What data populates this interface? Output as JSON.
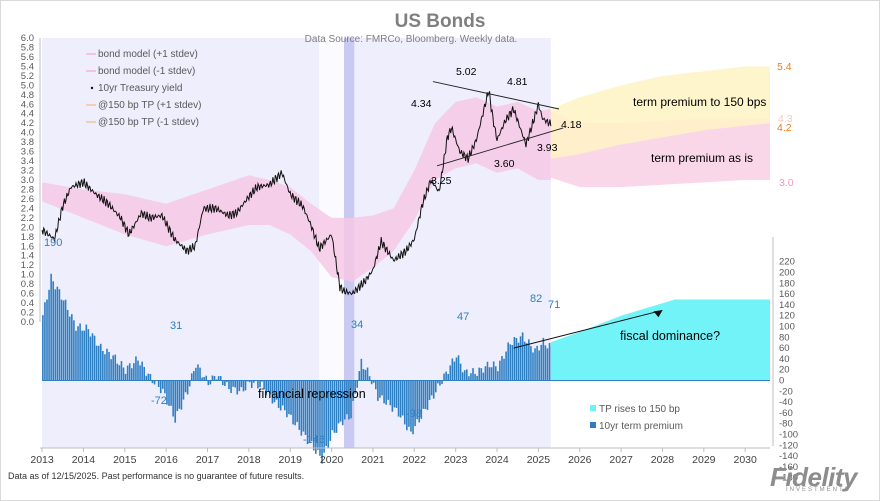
{
  "chart_data": {
    "type": "line",
    "title": "US Bonds",
    "subtitle": "Data Source: FMRCo, Bloomberg.  Weekly data.",
    "x_ticks": [
      "2013",
      "2014",
      "2015",
      "2016",
      "2017",
      "2018",
      "2019",
      "2020",
      "2021",
      "2022",
      "2023",
      "2024",
      "2025",
      "2026",
      "2027",
      "2028",
      "2029",
      "2030"
    ],
    "x_range": [
      2012.95,
      2030.6
    ],
    "left_axis": {
      "range": [
        0.0,
        6.0
      ],
      "ticks": [
        "6.0",
        "5.8",
        "5.6",
        "5.4",
        "5.2",
        "5.0",
        "4.8",
        "4.6",
        "4.4",
        "4.2",
        "4.0",
        "3.8",
        "3.6",
        "3.4",
        "3.2",
        "3.0",
        "2.8",
        "2.6",
        "2.4",
        "2.2",
        "2.0",
        "1.8",
        "1.6",
        "1.4",
        "1.2",
        "1.0",
        "0.8",
        "0.6",
        "0.4",
        "0.2",
        "0.0"
      ]
    },
    "right_axis": {
      "range": [
        -180,
        220
      ],
      "ticks": [
        "220",
        "200",
        "180",
        "160",
        "140",
        "120",
        "100",
        "80",
        "60",
        "40",
        "20",
        "0",
        "-20",
        "-40",
        "-60",
        "-80",
        "-100",
        "-120",
        "-140",
        "-160",
        "-180"
      ]
    },
    "legend_top": [
      {
        "label": "bond model (+1 stdev)",
        "color": "#f4b6d9"
      },
      {
        "label": "bond model (-1 stdev)",
        "color": "#f4b6d9"
      },
      {
        "label": "10yr Treasury yield",
        "color": "#111111"
      },
      {
        "label": "@150 bp TP (+1 stdev)",
        "color": "#f7c49a"
      },
      {
        "label": "@150 bp TP (-1 stdev)",
        "color": "#e8c59a"
      }
    ],
    "legend_bottom": [
      {
        "label": "TP rises to 150 bp",
        "color": "#6ef2f7"
      },
      {
        "label": "10yr term premium",
        "color": "#2d7cc1"
      }
    ],
    "series_yield": {
      "name": "10yr Treasury yield",
      "x": [
        2013.0,
        2013.3,
        2013.5,
        2013.7,
        2014.0,
        2014.3,
        2014.6,
        2014.9,
        2015.1,
        2015.4,
        2015.6,
        2015.9,
        2016.2,
        2016.5,
        2016.7,
        2016.9,
        2017.2,
        2017.5,
        2017.7,
        2018.0,
        2018.2,
        2018.5,
        2018.8,
        2019.0,
        2019.3,
        2019.5,
        2019.7,
        2020.0,
        2020.2,
        2020.3,
        2020.5,
        2020.8,
        2021.0,
        2021.2,
        2021.5,
        2021.8,
        2022.0,
        2022.2,
        2022.4,
        2022.6,
        2022.8,
        2022.9,
        2023.1,
        2023.3,
        2023.5,
        2023.8,
        2023.9,
        2024.0,
        2024.2,
        2024.4,
        2024.7,
        2024.9,
        2025.0,
        2025.1,
        2025.3
      ],
      "y": [
        1.95,
        1.75,
        2.45,
        2.85,
        2.95,
        2.7,
        2.5,
        2.2,
        1.85,
        2.3,
        2.2,
        2.25,
        1.75,
        1.5,
        1.6,
        2.4,
        2.4,
        2.25,
        2.3,
        2.65,
        2.85,
        2.9,
        3.15,
        2.7,
        2.45,
        2.05,
        1.55,
        1.85,
        0.75,
        0.65,
        0.6,
        0.85,
        1.1,
        1.7,
        1.3,
        1.5,
        1.75,
        2.5,
        3.0,
        2.75,
        3.9,
        4.1,
        3.6,
        3.45,
        3.85,
        4.9,
        4.3,
        3.85,
        4.25,
        4.5,
        3.75,
        4.3,
        4.6,
        4.3,
        4.18
      ]
    },
    "band_hist_upper": {
      "x": [
        2013.0,
        2014.0,
        2015.0,
        2016.0,
        2017.0,
        2018.0,
        2018.5,
        2019.0,
        2019.5,
        2020.0,
        2020.5,
        2021.0,
        2021.5,
        2022.0,
        2022.5,
        2023.0,
        2023.5,
        2024.0,
        2024.5,
        2025.0,
        2025.3
      ],
      "y": [
        2.95,
        2.8,
        2.7,
        2.5,
        2.8,
        3.1,
        3.0,
        2.85,
        2.5,
        2.2,
        2.2,
        2.25,
        2.4,
        3.2,
        4.2,
        4.65,
        4.75,
        4.55,
        4.65,
        4.45,
        4.5
      ]
    },
    "band_hist_lower": {
      "x": [
        2013.0,
        2014.0,
        2015.0,
        2016.0,
        2017.0,
        2018.0,
        2018.5,
        2019.0,
        2019.5,
        2020.0,
        2020.5,
        2021.0,
        2021.5,
        2022.0,
        2022.5,
        2023.0,
        2023.5,
        2024.0,
        2024.5,
        2025.0,
        2025.3
      ],
      "y": [
        2.55,
        2.2,
        1.85,
        1.6,
        1.85,
        2.05,
        2.05,
        1.85,
        1.5,
        0.95,
        0.85,
        1.15,
        1.5,
        2.15,
        3.0,
        3.25,
        3.35,
        3.15,
        3.25,
        3.0,
        3.0
      ]
    },
    "forecast_tp_upper": {
      "x": [
        2025.3,
        2026.0,
        2027.0,
        2028.0,
        2029.0,
        2030.0,
        2030.6
      ],
      "y": [
        4.5,
        4.75,
        5.0,
        5.2,
        5.3,
        5.4,
        5.4
      ]
    },
    "forecast_tp_lower": {
      "x": [
        2025.3,
        2026.0,
        2027.0,
        2028.0,
        2029.0,
        2030.0,
        2030.6
      ],
      "y": [
        3.45,
        3.55,
        3.75,
        3.9,
        4.05,
        4.15,
        4.2
      ]
    },
    "forecast_model_upper": {
      "x": [
        2025.3,
        2026.0,
        2027.0,
        2028.0,
        2029.0,
        2030.0,
        2030.6
      ],
      "y": [
        4.45,
        4.2,
        4.2,
        4.25,
        4.3,
        4.3,
        4.3
      ]
    },
    "forecast_model_lower": {
      "x": [
        2025.3,
        2026.0,
        2027.0,
        2028.0,
        2029.0,
        2030.0,
        2030.6
      ],
      "y": [
        3.05,
        2.85,
        2.85,
        2.9,
        2.95,
        3.0,
        3.0
      ]
    },
    "series_term_premium": {
      "name": "10yr term premium",
      "x": [
        2013.0,
        2013.2,
        2013.5,
        2013.8,
        2014.1,
        2014.4,
        2014.7,
        2015.0,
        2015.3,
        2015.6,
        2015.9,
        2016.2,
        2016.5,
        2016.7,
        2017.0,
        2017.2,
        2017.5,
        2017.8,
        2018.0,
        2018.3,
        2018.6,
        2018.9,
        2019.2,
        2019.5,
        2019.75,
        2020.0,
        2020.25,
        2020.45,
        2020.7,
        2020.9,
        2021.1,
        2021.3,
        2021.6,
        2021.9,
        2022.2,
        2022.5,
        2022.8,
        2023.0,
        2023.2,
        2023.5,
        2023.8,
        2024.0,
        2024.3,
        2024.6,
        2024.9,
        2025.1,
        2025.3
      ],
      "y": [
        120,
        190,
        150,
        100,
        95,
        60,
        45,
        20,
        40,
        5,
        -20,
        -72,
        -20,
        31,
        -5,
        10,
        -15,
        -20,
        -5,
        -10,
        -40,
        -60,
        -90,
        -120,
        -146,
        -100,
        -75,
        -65,
        34,
        10,
        -30,
        -40,
        -60,
        -98,
        -60,
        -20,
        20,
        47,
        15,
        15,
        30,
        25,
        70,
        82,
        55,
        71,
        60
      ]
    },
    "tp_projection": {
      "name": "TP rises to 150 bp",
      "x": [
        2025.3,
        2026.0,
        2027.0,
        2028.3,
        2030.6
      ],
      "y": [
        71,
        90,
        120,
        150,
        150
      ]
    },
    "annotations": {
      "h5_02": "5.02",
      "h4_81": "4.81",
      "h4_34": "4.34",
      "h4_18": "4.18",
      "h3_93": "3.93",
      "h3_60": "3.60",
      "h3_25": "3.25",
      "f5_4": "5.4",
      "f4_2": "4.2",
      "f3_0": "3.0",
      "f4_3": "4.3",
      "tp190": "190",
      "tp31": "31",
      "tp_72": "-72",
      "tp34": "34",
      "tp_98": "-98",
      "tp47": "47",
      "tp82": "82",
      "tp71": "71",
      "tp_146": "-146",
      "term_150": "term premium to 150 bps",
      "term_asis": "term premium as is",
      "fiscal": "fiscal dominance?",
      "repression": "financial repression"
    }
  },
  "footer": {
    "note": "Data as of 12/15/2025. Past performance is no guarantee of future results.",
    "logo": "Fidelity",
    "logo_sub": "INVESTMENTS"
  }
}
